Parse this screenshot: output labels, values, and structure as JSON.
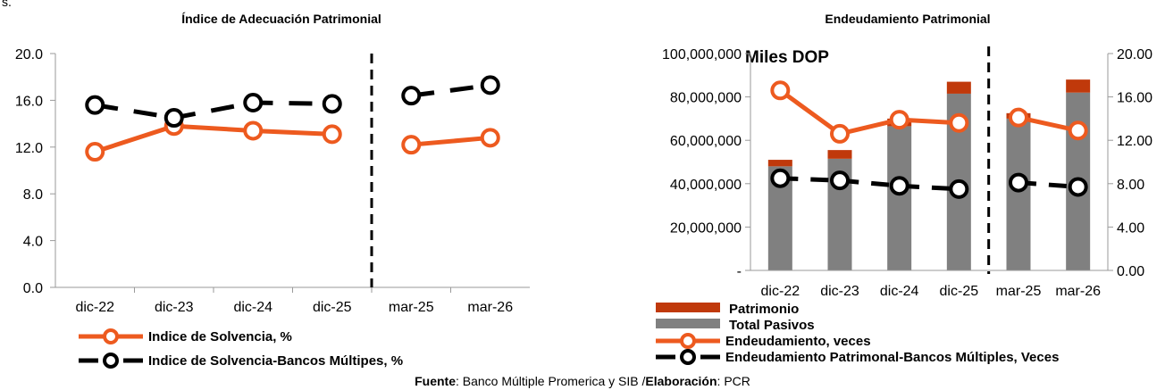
{
  "page": {
    "corner_text": "s.",
    "footer": {
      "source_label": "Fuente",
      "source_text": ": Banco Múltiple Promerica y SIB /",
      "elab_label": "Elaboración",
      "elab_text": ": PCR"
    }
  },
  "colors": {
    "orange": "#ED5A1F",
    "black": "#000000",
    "grey": "#808080",
    "dark_red": "#C0390B",
    "axis": "#9A9A9A"
  },
  "chart_data": [
    {
      "type": "line",
      "title": "Índice de Adecuación Patrimonial",
      "categories": [
        "dic-22",
        "dic-23",
        "dic-24",
        "dic-25",
        "mar-25",
        "mar-26"
      ],
      "ylim": [
        0,
        20
      ],
      "yticks": [
        "0.0",
        "4.0",
        "8.0",
        "12.0",
        "16.0",
        "20.0"
      ],
      "divider_after_index": 3,
      "legend_placement": "bottom",
      "series": [
        {
          "name": "Indice de Solvencia, %",
          "color": "#ED5A1F",
          "style": "solid",
          "values": [
            11.6,
            13.8,
            13.4,
            13.1,
            12.2,
            12.8
          ]
        },
        {
          "name": "Indice de Solvencia-Bancos Múltipes, %",
          "color": "#000000",
          "style": "dashed",
          "values": [
            15.6,
            14.5,
            15.8,
            15.7,
            16.4,
            17.3
          ]
        }
      ]
    },
    {
      "type": "bar",
      "title": "Endeudamiento Patrimonial",
      "annotation": "Miles DOP",
      "categories": [
        "dic-22",
        "dic-23",
        "dic-24",
        "dic-25",
        "mar-25",
        "mar-26"
      ],
      "ylim": [
        0,
        100000000
      ],
      "yticks": [
        "-",
        "20,000,000",
        "40,000,000",
        "60,000,000",
        "80,000,000",
        "100,000,000"
      ],
      "y2lim": [
        0,
        20
      ],
      "y2ticks": [
        "0.00",
        "4.00",
        "8.00",
        "12.00",
        "16.00",
        "20.00"
      ],
      "divider_after_index": 3,
      "legend_placement": "bottom",
      "series": [
        {
          "name": "Patrimonio",
          "color": "#C0390B",
          "kind": "stacked-bar",
          "values": [
            3000000,
            4000000,
            3500000,
            5500000,
            2500000,
            6000000
          ]
        },
        {
          "name": "Total Pasivos",
          "color": "#808080",
          "kind": "stacked-bar",
          "values": [
            48000000,
            51500000,
            66500000,
            81500000,
            70000000,
            82000000
          ]
        },
        {
          "name": "Endeudamiento, veces",
          "color": "#ED5A1F",
          "kind": "line",
          "axis": "right",
          "style": "solid",
          "values": [
            16.6,
            12.6,
            13.9,
            13.6,
            14.1,
            12.9
          ]
        },
        {
          "name": "Endeudamiento Patrimonal-Bancos Múltiples, Veces",
          "color": "#000000",
          "kind": "line",
          "axis": "right",
          "style": "dashed",
          "values": [
            8.5,
            8.3,
            7.8,
            7.5,
            8.1,
            7.7
          ]
        }
      ]
    }
  ]
}
